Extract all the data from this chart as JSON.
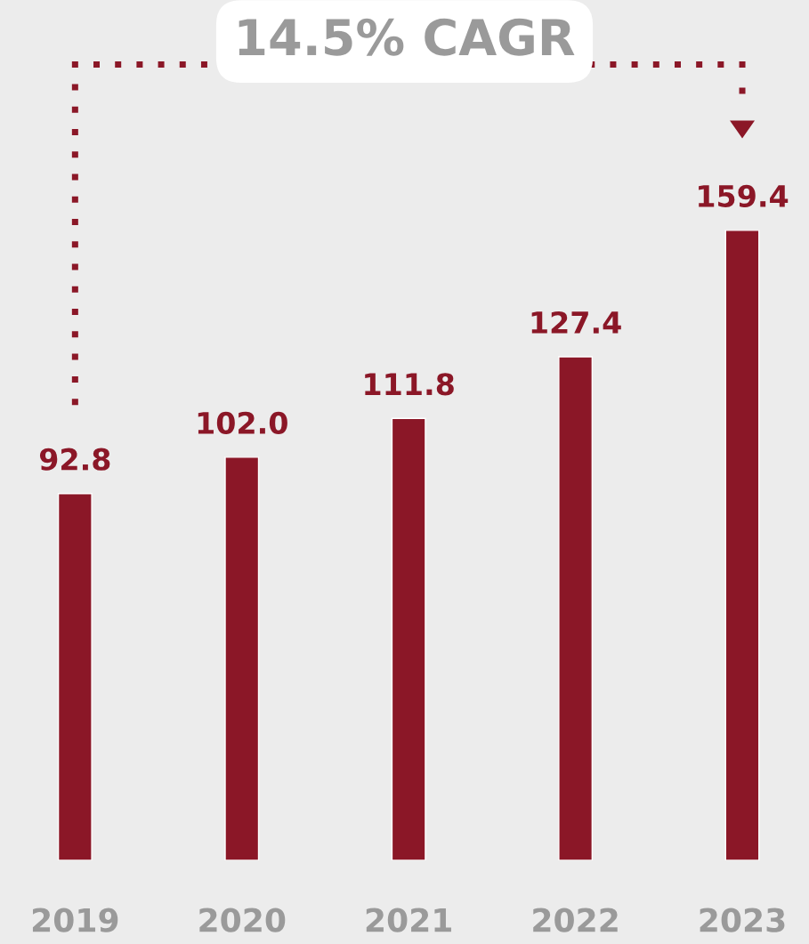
{
  "chart_data": {
    "type": "bar",
    "categories": [
      "2019",
      "2020",
      "2021",
      "2022",
      "2023"
    ],
    "series": [
      {
        "color": "#8b1727",
        "values": [
          92.8,
          102.0,
          111.8,
          127.4,
          159.4
        ],
        "value_labels": [
          "92.8",
          "102.0",
          "111.8",
          "127.4",
          "159.4"
        ]
      }
    ],
    "grid": false,
    "legend": false,
    "annotations": [
      "14.5% CAGR"
    ]
  }
}
